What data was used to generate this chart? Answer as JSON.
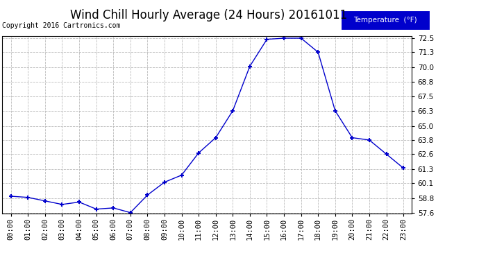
{
  "title": "Wind Chill Hourly Average (24 Hours) 20161011",
  "copyright": "Copyright 2016 Cartronics.com",
  "legend_label": "Temperature  (°F)",
  "x_labels": [
    "00:00",
    "01:00",
    "02:00",
    "03:00",
    "04:00",
    "05:00",
    "06:00",
    "07:00",
    "08:00",
    "09:00",
    "10:00",
    "11:00",
    "12:00",
    "13:00",
    "14:00",
    "15:00",
    "16:00",
    "17:00",
    "18:00",
    "19:00",
    "20:00",
    "21:00",
    "22:00",
    "23:00"
  ],
  "y_values": [
    59.0,
    58.9,
    58.6,
    58.3,
    58.5,
    57.9,
    58.0,
    57.6,
    59.1,
    60.2,
    60.8,
    62.7,
    64.0,
    66.3,
    70.1,
    72.4,
    72.5,
    72.5,
    71.3,
    66.3,
    64.0,
    63.8,
    62.6,
    61.4
  ],
  "ylim_min": 57.6,
  "ylim_max": 72.5,
  "yticks": [
    57.6,
    58.8,
    60.1,
    61.3,
    62.6,
    63.8,
    65.0,
    66.3,
    67.5,
    68.8,
    70.0,
    71.3,
    72.5
  ],
  "line_color": "#0000cc",
  "marker": "+",
  "marker_color": "#0000cc",
  "bg_color": "#ffffff",
  "plot_bg_color": "#ffffff",
  "grid_color": "#bbbbbb",
  "title_fontsize": 12,
  "copyright_fontsize": 7,
  "legend_bg_color": "#0000cc",
  "legend_text_color": "#ffffff",
  "tick_label_fontsize": 7.5
}
